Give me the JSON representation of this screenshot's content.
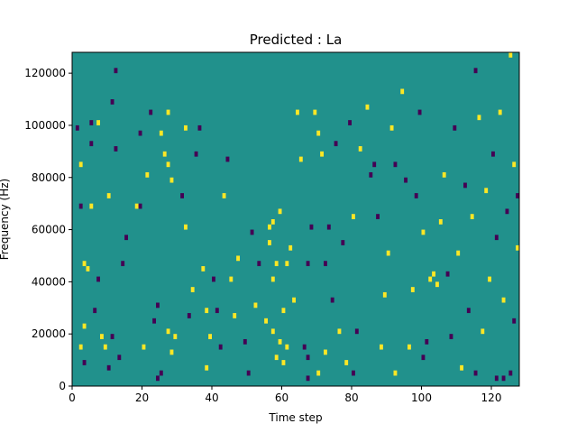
{
  "chart_data": {
    "type": "heatmap",
    "title": "Predicted : La",
    "xlabel": "Time step",
    "ylabel": "Frequency (Hz)",
    "xlim": [
      0,
      128
    ],
    "ylim": [
      0,
      128000
    ],
    "x_ticks": [
      0,
      20,
      40,
      60,
      80,
      100,
      120
    ],
    "y_ticks": [
      0,
      20000,
      40000,
      60000,
      80000,
      100000,
      120000
    ],
    "colors": {
      "background": "#21918c",
      "high": "#fde725",
      "low": "#440154"
    },
    "grid": false,
    "legend": "none",
    "cells": [
      {
        "t": 1,
        "f": 98000,
        "v": "low"
      },
      {
        "t": 2,
        "f": 84000,
        "v": "high"
      },
      {
        "t": 2,
        "f": 68000,
        "v": "low"
      },
      {
        "t": 3,
        "f": 46000,
        "v": "high"
      },
      {
        "t": 4,
        "f": 44000,
        "v": "high"
      },
      {
        "t": 3,
        "f": 22000,
        "v": "high"
      },
      {
        "t": 2,
        "f": 14000,
        "v": "high"
      },
      {
        "t": 3,
        "f": 8000,
        "v": "low"
      },
      {
        "t": 5,
        "f": 100000,
        "v": "low"
      },
      {
        "t": 5,
        "f": 92000,
        "v": "low"
      },
      {
        "t": 5,
        "f": 68000,
        "v": "high"
      },
      {
        "t": 6,
        "f": 28000,
        "v": "low"
      },
      {
        "t": 7,
        "f": 100000,
        "v": "high"
      },
      {
        "t": 7,
        "f": 40000,
        "v": "low"
      },
      {
        "t": 8,
        "f": 18000,
        "v": "high"
      },
      {
        "t": 9,
        "f": 14000,
        "v": "high"
      },
      {
        "t": 10,
        "f": 72000,
        "v": "high"
      },
      {
        "t": 11,
        "f": 108000,
        "v": "low"
      },
      {
        "t": 11,
        "f": 18000,
        "v": "low"
      },
      {
        "t": 12,
        "f": 120000,
        "v": "low"
      },
      {
        "t": 12,
        "f": 90000,
        "v": "low"
      },
      {
        "t": 13,
        "f": 10000,
        "v": "low"
      },
      {
        "t": 14,
        "f": 46000,
        "v": "low"
      },
      {
        "t": 15,
        "f": 56000,
        "v": "low"
      },
      {
        "t": 18,
        "f": 68000,
        "v": "high"
      },
      {
        "t": 19,
        "f": 96000,
        "v": "low"
      },
      {
        "t": 19,
        "f": 68000,
        "v": "low"
      },
      {
        "t": 20,
        "f": 14000,
        "v": "high"
      },
      {
        "t": 21,
        "f": 80000,
        "v": "high"
      },
      {
        "t": 22,
        "f": 104000,
        "v": "low"
      },
      {
        "t": 23,
        "f": 24000,
        "v": "low"
      },
      {
        "t": 24,
        "f": 30000,
        "v": "low"
      },
      {
        "t": 25,
        "f": 96000,
        "v": "high"
      },
      {
        "t": 26,
        "f": 88000,
        "v": "high"
      },
      {
        "t": 27,
        "f": 104000,
        "v": "high"
      },
      {
        "t": 27,
        "f": 84000,
        "v": "high"
      },
      {
        "t": 28,
        "f": 78000,
        "v": "high"
      },
      {
        "t": 27,
        "f": 20000,
        "v": "high"
      },
      {
        "t": 28,
        "f": 12000,
        "v": "high"
      },
      {
        "t": 29,
        "f": 18000,
        "v": "high"
      },
      {
        "t": 31,
        "f": 72000,
        "v": "low"
      },
      {
        "t": 32,
        "f": 60000,
        "v": "high"
      },
      {
        "t": 32,
        "f": 98000,
        "v": "high"
      },
      {
        "t": 33,
        "f": 26000,
        "v": "low"
      },
      {
        "t": 34,
        "f": 36000,
        "v": "high"
      },
      {
        "t": 35,
        "f": 88000,
        "v": "low"
      },
      {
        "t": 36,
        "f": 98000,
        "v": "low"
      },
      {
        "t": 37,
        "f": 44000,
        "v": "high"
      },
      {
        "t": 38,
        "f": 28000,
        "v": "high"
      },
      {
        "t": 39,
        "f": 18000,
        "v": "high"
      },
      {
        "t": 40,
        "f": 40000,
        "v": "low"
      },
      {
        "t": 41,
        "f": 28000,
        "v": "low"
      },
      {
        "t": 42,
        "f": 14000,
        "v": "low"
      },
      {
        "t": 43,
        "f": 72000,
        "v": "high"
      },
      {
        "t": 44,
        "f": 86000,
        "v": "low"
      },
      {
        "t": 45,
        "f": 40000,
        "v": "high"
      },
      {
        "t": 46,
        "f": 26000,
        "v": "high"
      },
      {
        "t": 47,
        "f": 48000,
        "v": "high"
      },
      {
        "t": 49,
        "f": 16000,
        "v": "low"
      },
      {
        "t": 51,
        "f": 58000,
        "v": "low"
      },
      {
        "t": 52,
        "f": 30000,
        "v": "high"
      },
      {
        "t": 53,
        "f": 46000,
        "v": "low"
      },
      {
        "t": 55,
        "f": 24000,
        "v": "high"
      },
      {
        "t": 56,
        "f": 54000,
        "v": "high"
      },
      {
        "t": 56,
        "f": 60000,
        "v": "high"
      },
      {
        "t": 57,
        "f": 62000,
        "v": "high"
      },
      {
        "t": 57,
        "f": 40000,
        "v": "high"
      },
      {
        "t": 57,
        "f": 20000,
        "v": "high"
      },
      {
        "t": 58,
        "f": 10000,
        "v": "high"
      },
      {
        "t": 58,
        "f": 46000,
        "v": "high"
      },
      {
        "t": 59,
        "f": 16000,
        "v": "high"
      },
      {
        "t": 59,
        "f": 66000,
        "v": "high"
      },
      {
        "t": 60,
        "f": 28000,
        "v": "high"
      },
      {
        "t": 61,
        "f": 14000,
        "v": "high"
      },
      {
        "t": 61,
        "f": 46000,
        "v": "high"
      },
      {
        "t": 62,
        "f": 52000,
        "v": "high"
      },
      {
        "t": 63,
        "f": 32000,
        "v": "high"
      },
      {
        "t": 64,
        "f": 104000,
        "v": "high"
      },
      {
        "t": 65,
        "f": 86000,
        "v": "high"
      },
      {
        "t": 66,
        "f": 14000,
        "v": "low"
      },
      {
        "t": 67,
        "f": 10000,
        "v": "low"
      },
      {
        "t": 67,
        "f": 46000,
        "v": "low"
      },
      {
        "t": 68,
        "f": 60000,
        "v": "low"
      },
      {
        "t": 69,
        "f": 104000,
        "v": "high"
      },
      {
        "t": 70,
        "f": 96000,
        "v": "high"
      },
      {
        "t": 71,
        "f": 88000,
        "v": "high"
      },
      {
        "t": 72,
        "f": 46000,
        "v": "low"
      },
      {
        "t": 72,
        "f": 12000,
        "v": "high"
      },
      {
        "t": 73,
        "f": 60000,
        "v": "low"
      },
      {
        "t": 74,
        "f": 32000,
        "v": "low"
      },
      {
        "t": 75,
        "f": 92000,
        "v": "low"
      },
      {
        "t": 76,
        "f": 20000,
        "v": "high"
      },
      {
        "t": 77,
        "f": 54000,
        "v": "low"
      },
      {
        "t": 78,
        "f": 8000,
        "v": "high"
      },
      {
        "t": 79,
        "f": 100000,
        "v": "low"
      },
      {
        "t": 80,
        "f": 64000,
        "v": "high"
      },
      {
        "t": 81,
        "f": 20000,
        "v": "low"
      },
      {
        "t": 82,
        "f": 90000,
        "v": "high"
      },
      {
        "t": 84,
        "f": 106000,
        "v": "high"
      },
      {
        "t": 85,
        "f": 80000,
        "v": "low"
      },
      {
        "t": 86,
        "f": 84000,
        "v": "low"
      },
      {
        "t": 87,
        "f": 64000,
        "v": "low"
      },
      {
        "t": 88,
        "f": 14000,
        "v": "high"
      },
      {
        "t": 89,
        "f": 34000,
        "v": "high"
      },
      {
        "t": 90,
        "f": 50000,
        "v": "high"
      },
      {
        "t": 91,
        "f": 98000,
        "v": "high"
      },
      {
        "t": 92,
        "f": 84000,
        "v": "low"
      },
      {
        "t": 94,
        "f": 112000,
        "v": "high"
      },
      {
        "t": 95,
        "f": 78000,
        "v": "low"
      },
      {
        "t": 96,
        "f": 14000,
        "v": "high"
      },
      {
        "t": 97,
        "f": 36000,
        "v": "high"
      },
      {
        "t": 98,
        "f": 72000,
        "v": "low"
      },
      {
        "t": 99,
        "f": 104000,
        "v": "low"
      },
      {
        "t": 100,
        "f": 58000,
        "v": "high"
      },
      {
        "t": 101,
        "f": 16000,
        "v": "low"
      },
      {
        "t": 102,
        "f": 40000,
        "v": "high"
      },
      {
        "t": 103,
        "f": 42000,
        "v": "high"
      },
      {
        "t": 104,
        "f": 38000,
        "v": "high"
      },
      {
        "t": 105,
        "f": 62000,
        "v": "high"
      },
      {
        "t": 106,
        "f": 80000,
        "v": "high"
      },
      {
        "t": 107,
        "f": 42000,
        "v": "low"
      },
      {
        "t": 108,
        "f": 18000,
        "v": "low"
      },
      {
        "t": 109,
        "f": 98000,
        "v": "low"
      },
      {
        "t": 110,
        "f": 50000,
        "v": "high"
      },
      {
        "t": 111,
        "f": 6000,
        "v": "high"
      },
      {
        "t": 112,
        "f": 76000,
        "v": "low"
      },
      {
        "t": 113,
        "f": 28000,
        "v": "low"
      },
      {
        "t": 114,
        "f": 64000,
        "v": "high"
      },
      {
        "t": 115,
        "f": 120000,
        "v": "low"
      },
      {
        "t": 116,
        "f": 102000,
        "v": "high"
      },
      {
        "t": 117,
        "f": 20000,
        "v": "high"
      },
      {
        "t": 118,
        "f": 74000,
        "v": "high"
      },
      {
        "t": 119,
        "f": 40000,
        "v": "high"
      },
      {
        "t": 120,
        "f": 88000,
        "v": "low"
      },
      {
        "t": 121,
        "f": 56000,
        "v": "low"
      },
      {
        "t": 122,
        "f": 104000,
        "v": "high"
      },
      {
        "t": 123,
        "f": 32000,
        "v": "high"
      },
      {
        "t": 124,
        "f": 66000,
        "v": "low"
      },
      {
        "t": 125,
        "f": 126000,
        "v": "high"
      },
      {
        "t": 126,
        "f": 84000,
        "v": "high"
      },
      {
        "t": 127,
        "f": 52000,
        "v": "high"
      },
      {
        "t": 126,
        "f": 24000,
        "v": "low"
      },
      {
        "t": 127,
        "f": 72000,
        "v": "low"
      },
      {
        "t": 125,
        "f": 4000,
        "v": "low"
      },
      {
        "t": 115,
        "f": 4000,
        "v": "low"
      },
      {
        "t": 100,
        "f": 10000,
        "v": "low"
      },
      {
        "t": 92,
        "f": 4000,
        "v": "high"
      },
      {
        "t": 80,
        "f": 4000,
        "v": "low"
      },
      {
        "t": 70,
        "f": 4000,
        "v": "high"
      },
      {
        "t": 60,
        "f": 8000,
        "v": "high"
      },
      {
        "t": 50,
        "f": 4000,
        "v": "low"
      },
      {
        "t": 38,
        "f": 6000,
        "v": "high"
      },
      {
        "t": 25,
        "f": 4000,
        "v": "low"
      },
      {
        "t": 10,
        "f": 6000,
        "v": "low"
      },
      {
        "t": 121,
        "f": 2000,
        "v": "low"
      },
      {
        "t": 123,
        "f": 2000,
        "v": "low"
      },
      {
        "t": 24,
        "f": 2000,
        "v": "low"
      },
      {
        "t": 67,
        "f": 2000,
        "v": "low"
      }
    ]
  }
}
